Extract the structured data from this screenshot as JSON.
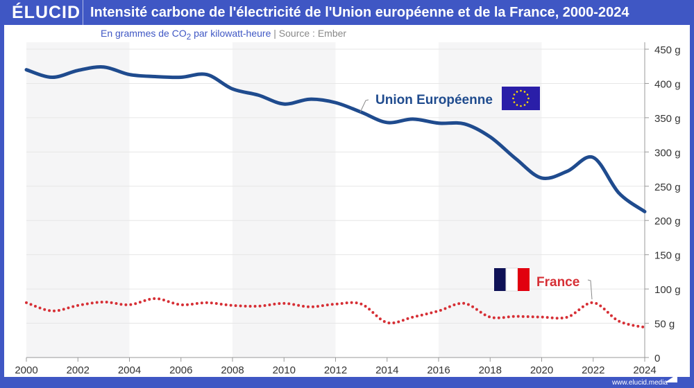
{
  "header": {
    "logo": "ÉLUCID",
    "title": "Intensité carbone de l'électricité de l'Union européenne et de la France, 2000-2024"
  },
  "subtitle": {
    "unit_prefix": "En grammes de CO",
    "unit_sub": "2",
    "unit_suffix": " par kilowatt-heure",
    "divider": "|",
    "source": "Source : Ember"
  },
  "footer": {
    "url": "www.elucid.media"
  },
  "chart_data": {
    "type": "line",
    "x": [
      2000,
      2001,
      2002,
      2003,
      2004,
      2005,
      2006,
      2007,
      2008,
      2009,
      2010,
      2011,
      2012,
      2013,
      2014,
      2015,
      2016,
      2017,
      2018,
      2019,
      2020,
      2021,
      2022,
      2023,
      2024
    ],
    "series": [
      {
        "name": "Union Européenne",
        "color": "#1f4b8e",
        "style": "solid",
        "values": [
          420,
          409,
          419,
          424,
          413,
          410,
          409,
          413,
          392,
          383,
          370,
          377,
          372,
          358,
          343,
          348,
          342,
          341,
          322,
          290,
          262,
          272,
          292,
          240,
          213
        ]
      },
      {
        "name": "France",
        "color": "#d62f35",
        "style": "dotted",
        "values": [
          80,
          68,
          76,
          81,
          77,
          86,
          77,
          80,
          76,
          75,
          79,
          74,
          78,
          78,
          51,
          59,
          68,
          79,
          59,
          60,
          59,
          59,
          80,
          53,
          44
        ]
      }
    ],
    "xticks": [
      "2000",
      "2002",
      "2004",
      "2006",
      "2008",
      "2010",
      "2012",
      "2014",
      "2016",
      "2018",
      "2020",
      "2022",
      "2024"
    ],
    "yticks": [
      "0",
      "50 g",
      "100 g",
      "150 g",
      "200 g",
      "250 g",
      "300 g",
      "350 g",
      "400 g",
      "450 g"
    ],
    "ylim": [
      0,
      450
    ],
    "xlim": [
      2000,
      2024
    ],
    "grid": true,
    "y_axis_side": "right"
  }
}
